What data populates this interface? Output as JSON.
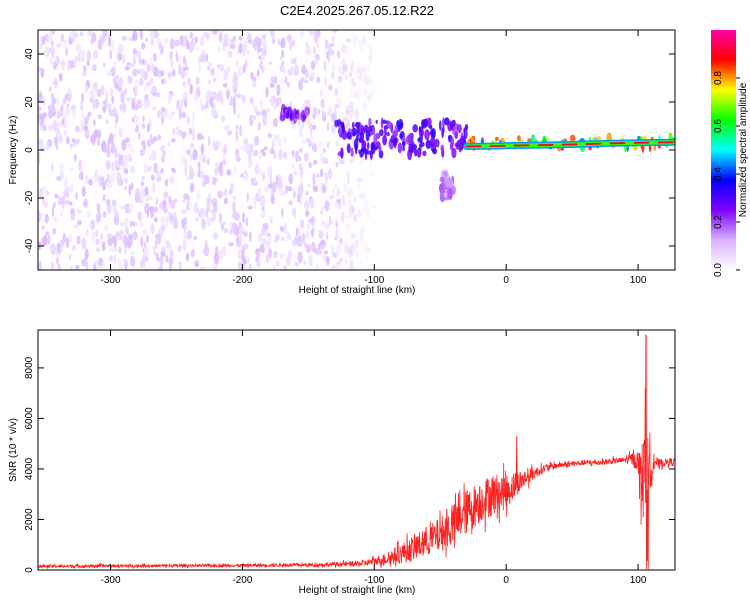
{
  "figure": {
    "title": "C2E4.2025.267.05.12.R22"
  },
  "chart_data": [
    {
      "type": "heatmap",
      "title": "C2E4.2025.267.05.12.R22",
      "xlabel": "Height of straight line (km)",
      "ylabel": "Frequency (Hz)",
      "xlim": [
        -355,
        128
      ],
      "ylim": [
        -50,
        50
      ],
      "xticks": [
        -300,
        -200,
        -100,
        0,
        100
      ],
      "yticks": [
        -40,
        -20,
        0,
        20,
        40
      ],
      "colorbar": {
        "label": "Normalized spectral amplitude",
        "range": [
          0,
          1
        ],
        "ticks": [
          0.0,
          0.2,
          0.4,
          0.6,
          0.8
        ],
        "colormap": [
          "#ffffff",
          "#d9b3ff",
          "#8000ff",
          "#0000ff",
          "#00ffff",
          "#00ff00",
          "#ffff00",
          "#ff0000",
          "#ff00aa"
        ]
      },
      "regions": [
        {
          "x": [
            -355,
            -100
          ],
          "y": [
            -50,
            50
          ],
          "amplitude": [
            0.03,
            0.12
          ]
        },
        {
          "x": [
            -170,
            -150
          ],
          "y": [
            13,
            17
          ],
          "amplitude": [
            0.15,
            0.3
          ]
        },
        {
          "x": [
            -130,
            -30
          ],
          "y": [
            -2,
            12
          ],
          "amplitude": [
            0.2,
            0.35
          ]
        },
        {
          "x": [
            -50,
            -40
          ],
          "y": [
            -20,
            -10
          ],
          "amplitude": [
            0.1,
            0.2
          ]
        },
        {
          "x": [
            -30,
            128
          ],
          "y": [
            1,
            5
          ],
          "amplitude": [
            0.4,
            0.95
          ]
        }
      ],
      "carrier": {
        "x": [
          -30,
          -15,
          0,
          20,
          50,
          80,
          100,
          128
        ],
        "y": [
          1.5,
          1.6,
          1.8,
          2.0,
          2.3,
          2.8,
          3.0,
          3.2
        ]
      }
    },
    {
      "type": "line",
      "xlabel": "Height of straight line (km)",
      "ylabel": "SNR (10 * v/v)",
      "xlim": [
        -355,
        128
      ],
      "ylim": [
        0,
        9500
      ],
      "xticks": [
        -300,
        -200,
        -100,
        0,
        100
      ],
      "yticks": [
        0,
        2000,
        4000,
        6000,
        8000
      ],
      "series": [
        {
          "color": "#ff2020",
          "x": [
            -355,
            -300,
            -250,
            -200,
            -150,
            -110,
            -100,
            -90,
            -80,
            -70,
            -60,
            -50,
            -40,
            -30,
            -20,
            -10,
            0,
            10,
            20,
            30,
            40,
            50,
            60,
            70,
            80,
            90,
            95,
            100,
            103,
            105,
            108,
            110,
            112,
            115,
            120,
            128
          ],
          "y": [
            150,
            160,
            170,
            180,
            200,
            250,
            350,
            450,
            650,
            850,
            1150,
            1400,
            1800,
            2300,
            2700,
            3000,
            3100,
            3500,
            3800,
            4050,
            4150,
            4200,
            4250,
            4250,
            4300,
            4350,
            4400,
            4300,
            3500,
            5500,
            2000,
            4600,
            4400,
            4200,
            4250,
            4300
          ],
          "noise": [
            60,
            60,
            60,
            60,
            70,
            110,
            160,
            260,
            400,
            520,
            600,
            700,
            800,
            900,
            850,
            850,
            700,
            450,
            250,
            150,
            120,
            110,
            110,
            110,
            110,
            120,
            250,
            400,
            1500,
            2500,
            3000,
            1500,
            400,
            200,
            150,
            150
          ]
        }
      ],
      "peaks": [
        {
          "x": 106,
          "y": 9300
        },
        {
          "x": 107,
          "y": 500
        },
        {
          "x": 8,
          "y": 5300
        }
      ]
    }
  ]
}
